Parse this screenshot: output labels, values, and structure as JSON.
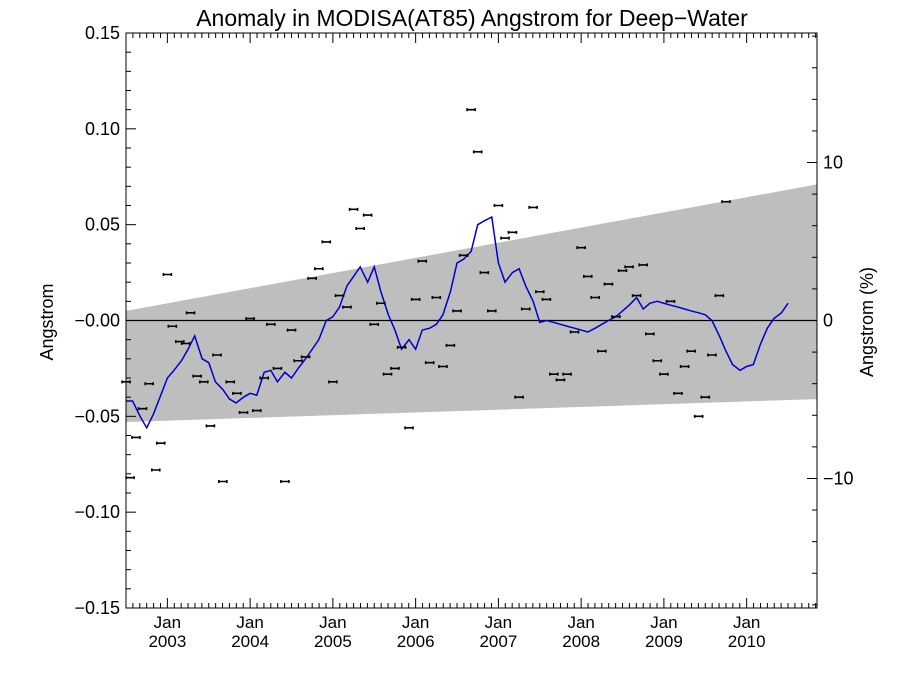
{
  "chart_data": {
    "type": "scatter",
    "title": "Anomaly in MODISA(AT85) Angstrom for Deep−Water",
    "ylabel": "Angstrom",
    "y2label": "Angstrom (%)",
    "xlim": [
      2002.5,
      2010.85
    ],
    "ylim": [
      -0.15,
      0.15
    ],
    "y2lim": [
      -18.2,
      18.2
    ],
    "grid": false,
    "ytick_values": [
      -0.15,
      -0.1,
      -0.05,
      0.0,
      0.05,
      0.1,
      0.15
    ],
    "ytick_labels": [
      "−0.15",
      "−0.10",
      "−0.05",
      "−0.00",
      "0.05",
      "0.10",
      "0.15"
    ],
    "y2tick_values": [
      -10,
      0,
      10
    ],
    "y2tick_labels": [
      "−10",
      "0",
      "10"
    ],
    "xtick_values": [
      2003,
      2004,
      2005,
      2006,
      2007,
      2008,
      2009,
      2010
    ],
    "xtick_month_labels": [
      "Jan",
      "Jan",
      "Jan",
      "Jan",
      "Jan",
      "Jan",
      "Jan",
      "Jan"
    ],
    "xtick_year_labels": [
      "2003",
      "2004",
      "2005",
      "2006",
      "2007",
      "2008",
      "2009",
      "2010"
    ],
    "band": {
      "color": "#bebebe",
      "upper": [
        [
          2002.5,
          0.005
        ],
        [
          2010.85,
          0.071
        ]
      ],
      "lower": [
        [
          2002.5,
          -0.053
        ],
        [
          2010.85,
          -0.041
        ]
      ]
    },
    "zero_line": 0,
    "series": [
      {
        "type": "line",
        "color": "#0000cc",
        "points": [
          [
            2002.5,
            -0.042
          ],
          [
            2002.58,
            -0.042
          ],
          [
            2002.67,
            -0.05
          ],
          [
            2002.75,
            -0.056
          ],
          [
            2002.83,
            -0.049
          ],
          [
            2002.92,
            -0.039
          ],
          [
            2003.0,
            -0.03
          ],
          [
            2003.08,
            -0.026
          ],
          [
            2003.17,
            -0.021
          ],
          [
            2003.25,
            -0.015
          ],
          [
            2003.33,
            -0.008
          ],
          [
            2003.42,
            -0.02
          ],
          [
            2003.5,
            -0.022
          ],
          [
            2003.58,
            -0.032
          ],
          [
            2003.67,
            -0.036
          ],
          [
            2003.75,
            -0.041
          ],
          [
            2003.83,
            -0.043
          ],
          [
            2003.92,
            -0.04
          ],
          [
            2004.0,
            -0.038
          ],
          [
            2004.08,
            -0.039
          ],
          [
            2004.17,
            -0.027
          ],
          [
            2004.25,
            -0.026
          ],
          [
            2004.33,
            -0.032
          ],
          [
            2004.42,
            -0.027
          ],
          [
            2004.5,
            -0.03
          ],
          [
            2004.58,
            -0.025
          ],
          [
            2004.67,
            -0.02
          ],
          [
            2004.75,
            -0.015
          ],
          [
            2004.83,
            -0.01
          ],
          [
            2004.92,
            0.0
          ],
          [
            2005.0,
            0.002
          ],
          [
            2005.08,
            0.007
          ],
          [
            2005.17,
            0.018
          ],
          [
            2005.25,
            0.023
          ],
          [
            2005.33,
            0.028
          ],
          [
            2005.42,
            0.02
          ],
          [
            2005.5,
            0.028
          ],
          [
            2005.58,
            0.015
          ],
          [
            2005.67,
            0.003
          ],
          [
            2005.75,
            -0.005
          ],
          [
            2005.83,
            -0.015
          ],
          [
            2005.92,
            -0.01
          ],
          [
            2006.0,
            -0.015
          ],
          [
            2006.08,
            -0.005
          ],
          [
            2006.17,
            -0.004
          ],
          [
            2006.25,
            -0.002
          ],
          [
            2006.33,
            0.003
          ],
          [
            2006.42,
            0.015
          ],
          [
            2006.5,
            0.03
          ],
          [
            2006.58,
            0.032
          ],
          [
            2006.67,
            0.036
          ],
          [
            2006.75,
            0.05
          ],
          [
            2006.83,
            0.052
          ],
          [
            2006.92,
            0.054
          ],
          [
            2007.0,
            0.03
          ],
          [
            2007.08,
            0.02
          ],
          [
            2007.17,
            0.025
          ],
          [
            2007.25,
            0.027
          ],
          [
            2007.33,
            0.018
          ],
          [
            2007.42,
            0.01
          ],
          [
            2007.5,
            -0.001
          ],
          [
            2007.58,
            0.0
          ],
          [
            2007.67,
            -0.001
          ],
          [
            2007.75,
            -0.002
          ],
          [
            2007.83,
            -0.003
          ],
          [
            2007.92,
            -0.004
          ],
          [
            2008.0,
            -0.005
          ],
          [
            2008.08,
            -0.006
          ],
          [
            2008.17,
            -0.004
          ],
          [
            2008.25,
            -0.002
          ],
          [
            2008.33,
            0.0
          ],
          [
            2008.42,
            0.002
          ],
          [
            2008.5,
            0.005
          ],
          [
            2008.58,
            0.008
          ],
          [
            2008.67,
            0.012
          ],
          [
            2008.75,
            0.006
          ],
          [
            2008.83,
            0.009
          ],
          [
            2008.92,
            0.01
          ],
          [
            2009.0,
            0.009
          ],
          [
            2009.08,
            0.008
          ],
          [
            2009.17,
            0.007
          ],
          [
            2009.25,
            0.006
          ],
          [
            2009.33,
            0.005
          ],
          [
            2009.42,
            0.004
          ],
          [
            2009.5,
            0.003
          ],
          [
            2009.58,
            0.0
          ],
          [
            2009.67,
            -0.008
          ],
          [
            2009.75,
            -0.016
          ],
          [
            2009.83,
            -0.023
          ],
          [
            2009.92,
            -0.026
          ],
          [
            2010.0,
            -0.024
          ],
          [
            2010.08,
            -0.023
          ],
          [
            2010.17,
            -0.012
          ],
          [
            2010.25,
            -0.004
          ],
          [
            2010.33,
            0.001
          ],
          [
            2010.42,
            0.004
          ],
          [
            2010.5,
            0.009
          ]
        ]
      },
      {
        "type": "scatter",
        "color": "#000000",
        "points": [
          [
            2002.5,
            -0.032
          ],
          [
            2002.55,
            -0.082
          ],
          [
            2002.62,
            -0.061
          ],
          [
            2002.7,
            -0.046
          ],
          [
            2002.78,
            -0.033
          ],
          [
            2002.86,
            -0.078
          ],
          [
            2002.92,
            -0.064
          ],
          [
            2003.0,
            0.024
          ],
          [
            2003.06,
            -0.003
          ],
          [
            2003.15,
            -0.011
          ],
          [
            2003.22,
            -0.012
          ],
          [
            2003.28,
            0.004
          ],
          [
            2003.36,
            -0.029
          ],
          [
            2003.44,
            -0.032
          ],
          [
            2003.52,
            -0.055
          ],
          [
            2003.6,
            -0.018
          ],
          [
            2003.67,
            -0.084
          ],
          [
            2003.76,
            -0.032
          ],
          [
            2003.84,
            -0.038
          ],
          [
            2003.92,
            -0.048
          ],
          [
            2004.0,
            0.001
          ],
          [
            2004.08,
            -0.047
          ],
          [
            2004.17,
            -0.03
          ],
          [
            2004.25,
            -0.002
          ],
          [
            2004.33,
            -0.025
          ],
          [
            2004.42,
            -0.084
          ],
          [
            2004.5,
            -0.005
          ],
          [
            2004.58,
            -0.021
          ],
          [
            2004.67,
            -0.019
          ],
          [
            2004.75,
            0.022
          ],
          [
            2004.83,
            0.027
          ],
          [
            2004.92,
            0.041
          ],
          [
            2005.0,
            -0.032
          ],
          [
            2005.08,
            0.013
          ],
          [
            2005.17,
            0.007
          ],
          [
            2005.25,
            0.058
          ],
          [
            2005.33,
            0.048
          ],
          [
            2005.42,
            0.055
          ],
          [
            2005.5,
            -0.002
          ],
          [
            2005.58,
            0.009
          ],
          [
            2005.66,
            -0.028
          ],
          [
            2005.75,
            -0.025
          ],
          [
            2005.83,
            -0.014
          ],
          [
            2005.92,
            -0.056
          ],
          [
            2006.0,
            0.011
          ],
          [
            2006.08,
            0.031
          ],
          [
            2006.17,
            -0.022
          ],
          [
            2006.25,
            0.012
          ],
          [
            2006.33,
            -0.024
          ],
          [
            2006.42,
            -0.013
          ],
          [
            2006.5,
            0.005
          ],
          [
            2006.58,
            0.034
          ],
          [
            2006.67,
            0.11
          ],
          [
            2006.75,
            0.088
          ],
          [
            2006.83,
            0.025
          ],
          [
            2006.92,
            0.005
          ],
          [
            2007.0,
            0.06
          ],
          [
            2007.08,
            0.043
          ],
          [
            2007.17,
            0.046
          ],
          [
            2007.25,
            -0.04
          ],
          [
            2007.33,
            0.006
          ],
          [
            2007.42,
            0.059
          ],
          [
            2007.5,
            0.015
          ],
          [
            2007.58,
            0.011
          ],
          [
            2007.67,
            -0.028
          ],
          [
            2007.75,
            -0.031
          ],
          [
            2007.83,
            -0.028
          ],
          [
            2007.92,
            -0.006
          ],
          [
            2008.0,
            0.038
          ],
          [
            2008.08,
            0.023
          ],
          [
            2008.17,
            0.012
          ],
          [
            2008.25,
            -0.016
          ],
          [
            2008.33,
            0.019
          ],
          [
            2008.42,
            0.002
          ],
          [
            2008.5,
            0.026
          ],
          [
            2008.58,
            0.028
          ],
          [
            2008.67,
            0.013
          ],
          [
            2008.75,
            0.029
          ],
          [
            2008.83,
            -0.007
          ],
          [
            2008.92,
            -0.021
          ],
          [
            2009.0,
            -0.028
          ],
          [
            2009.08,
            0.01
          ],
          [
            2009.17,
            -0.038
          ],
          [
            2009.25,
            -0.024
          ],
          [
            2009.33,
            -0.016
          ],
          [
            2009.42,
            -0.05
          ],
          [
            2009.5,
            -0.04
          ],
          [
            2009.58,
            -0.018
          ],
          [
            2009.67,
            0.013
          ],
          [
            2009.75,
            0.062
          ]
        ]
      }
    ]
  }
}
